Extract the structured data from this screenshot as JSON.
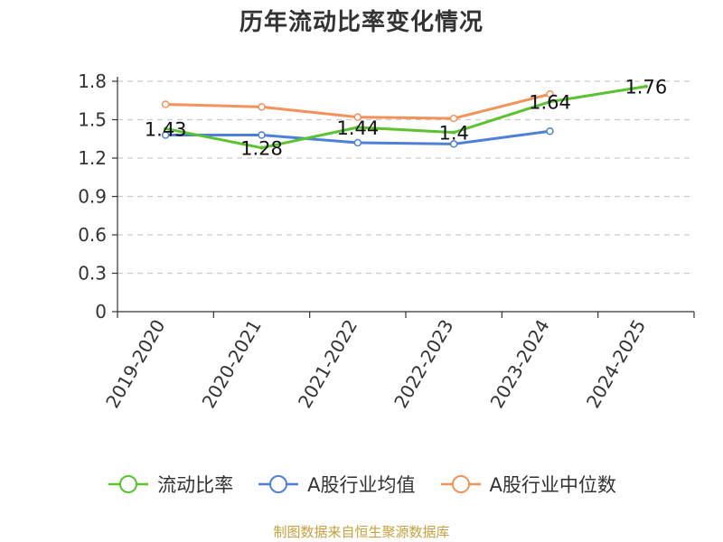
{
  "title": "历年流动比率变化情况",
  "source": "制图数据来自恒生聚源数据库",
  "chart_data": {
    "type": "line",
    "title": "历年流动比率变化情况",
    "categories": [
      "2019-2020",
      "2020-2021",
      "2021-2022",
      "2022-2023",
      "2023-2024",
      "2024-2025"
    ],
    "ylim": [
      0,
      1.8
    ],
    "yticks": [
      0,
      0.3,
      0.6,
      0.9,
      1.2,
      1.5,
      1.8
    ],
    "ytick_labels": [
      "0",
      "0.3",
      "0.6",
      "0.9",
      "1.2",
      "1.5",
      "1.8"
    ],
    "grid": true,
    "legend_position": "bottom",
    "series": [
      {
        "name": "流动比率",
        "color": "#5ac32f",
        "values": [
          1.43,
          1.28,
          1.44,
          1.4,
          1.64,
          1.76
        ],
        "labels": [
          "1.43",
          "1.28",
          "1.44",
          "1.4",
          "1.64",
          "1.76"
        ],
        "show_markers": false
      },
      {
        "name": "A股行业均值",
        "color": "#4e7fd9",
        "values": [
          1.38,
          1.38,
          1.32,
          1.31,
          1.41,
          null
        ],
        "show_markers": true
      },
      {
        "name": "A股行业中位数",
        "color": "#f5925a",
        "values": [
          1.62,
          1.6,
          1.52,
          1.51,
          1.7,
          null
        ],
        "show_markers": true
      }
    ]
  }
}
